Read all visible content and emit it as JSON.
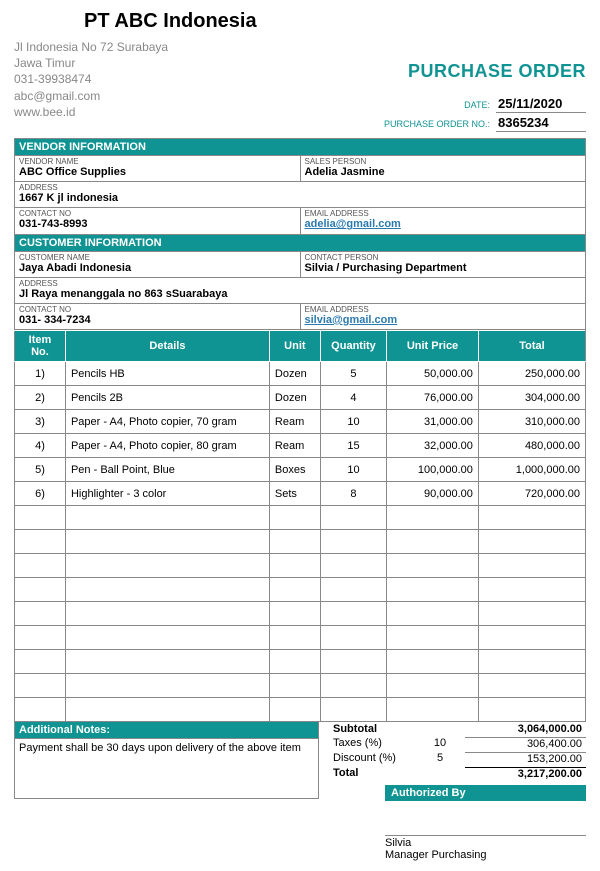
{
  "colors": {
    "accent": "#109393",
    "border": "#888888",
    "muted": "#888888",
    "link": "#2a7ab0",
    "bg": "#ffffff"
  },
  "company": {
    "name": "PT ABC Indonesia",
    "addr1": "Jl Indonesia No 72 Surabaya",
    "addr2": "Jawa Timur",
    "phone": "031-39938474",
    "email": "abc@gmail.com",
    "web": "www.bee.id"
  },
  "po": {
    "title": "PURCHASE ORDER",
    "date_label": "DATE:",
    "date": "25/11/2020",
    "no_label": "PURCHASE ORDER NO.:",
    "no": "8365234"
  },
  "vendor_section": "VENDOR INFORMATION",
  "vendor": {
    "name_label": "VENDOR NAME",
    "name": "ABC Office Supplies",
    "sales_label": "SALES PERSON",
    "sales": "Adelia Jasmine",
    "addr_label": "ADDRESS",
    "addr": "1667 K jl indonesia",
    "contact_label": "CONTACT NO",
    "contact": "031-743-8993",
    "email_label": "EMAIL ADDRESS",
    "email": "adelia@gmail.com"
  },
  "customer_section": "CUSTOMER INFORMATION",
  "customer": {
    "name_label": "CUSTOMER NAME",
    "name": "Jaya Abadi Indonesia",
    "person_label": "CONTACT PERSON",
    "person": "Silvia / Purchasing Department",
    "addr_label": "ADDRESS",
    "addr": "Jl Raya menanggala no 863 sSuarabaya",
    "contact_label": "CONTACT NO",
    "contact": "031- 334-7234",
    "email_label": "EMAIL ADDRESS",
    "email": "silvia@gmail.com"
  },
  "table": {
    "headers": {
      "num": "Item No.",
      "details": "Details",
      "unit": "Unit",
      "qty": "Quantity",
      "price": "Unit Price",
      "total": "Total"
    },
    "rows": [
      {
        "num": "1)",
        "details": "Pencils HB",
        "unit": "Dozen",
        "qty": "5",
        "price": "50,000.00",
        "total": "250,000.00"
      },
      {
        "num": "2)",
        "details": "Pencils 2B",
        "unit": "Dozen",
        "qty": "4",
        "price": "76,000.00",
        "total": "304,000.00"
      },
      {
        "num": "3)",
        "details": "Paper - A4, Photo copier, 70 gram",
        "unit": "Ream",
        "qty": "10",
        "price": "31,000.00",
        "total": "310,000.00"
      },
      {
        "num": "4)",
        "details": "Paper - A4, Photo copier, 80 gram",
        "unit": "Ream",
        "qty": "15",
        "price": "32,000.00",
        "total": "480,000.00"
      },
      {
        "num": "5)",
        "details": "Pen - Ball Point, Blue",
        "unit": "Boxes",
        "qty": "10",
        "price": "100,000.00",
        "total": "1,000,000.00"
      },
      {
        "num": "6)",
        "details": "Highlighter - 3 color",
        "unit": "Sets",
        "qty": "8",
        "price": "90,000.00",
        "total": "720,000.00"
      }
    ],
    "empty_rows": 9
  },
  "notes": {
    "head": "Additional Notes:",
    "body": "Payment shall be 30 days upon delivery of the above item"
  },
  "totals": {
    "subtotal_label": "Subtotal",
    "subtotal": "3,064,000.00",
    "tax_label": "Taxes (%)",
    "tax_pct": "10",
    "tax": "306,400.00",
    "disc_label": "Discount (%)",
    "disc_pct": "5",
    "disc": "153,200.00",
    "total_label": "Total",
    "total": "3,217,200.00"
  },
  "auth": {
    "head": "Authorized By",
    "name": "Silvia",
    "title": "Manager Purchasing"
  }
}
